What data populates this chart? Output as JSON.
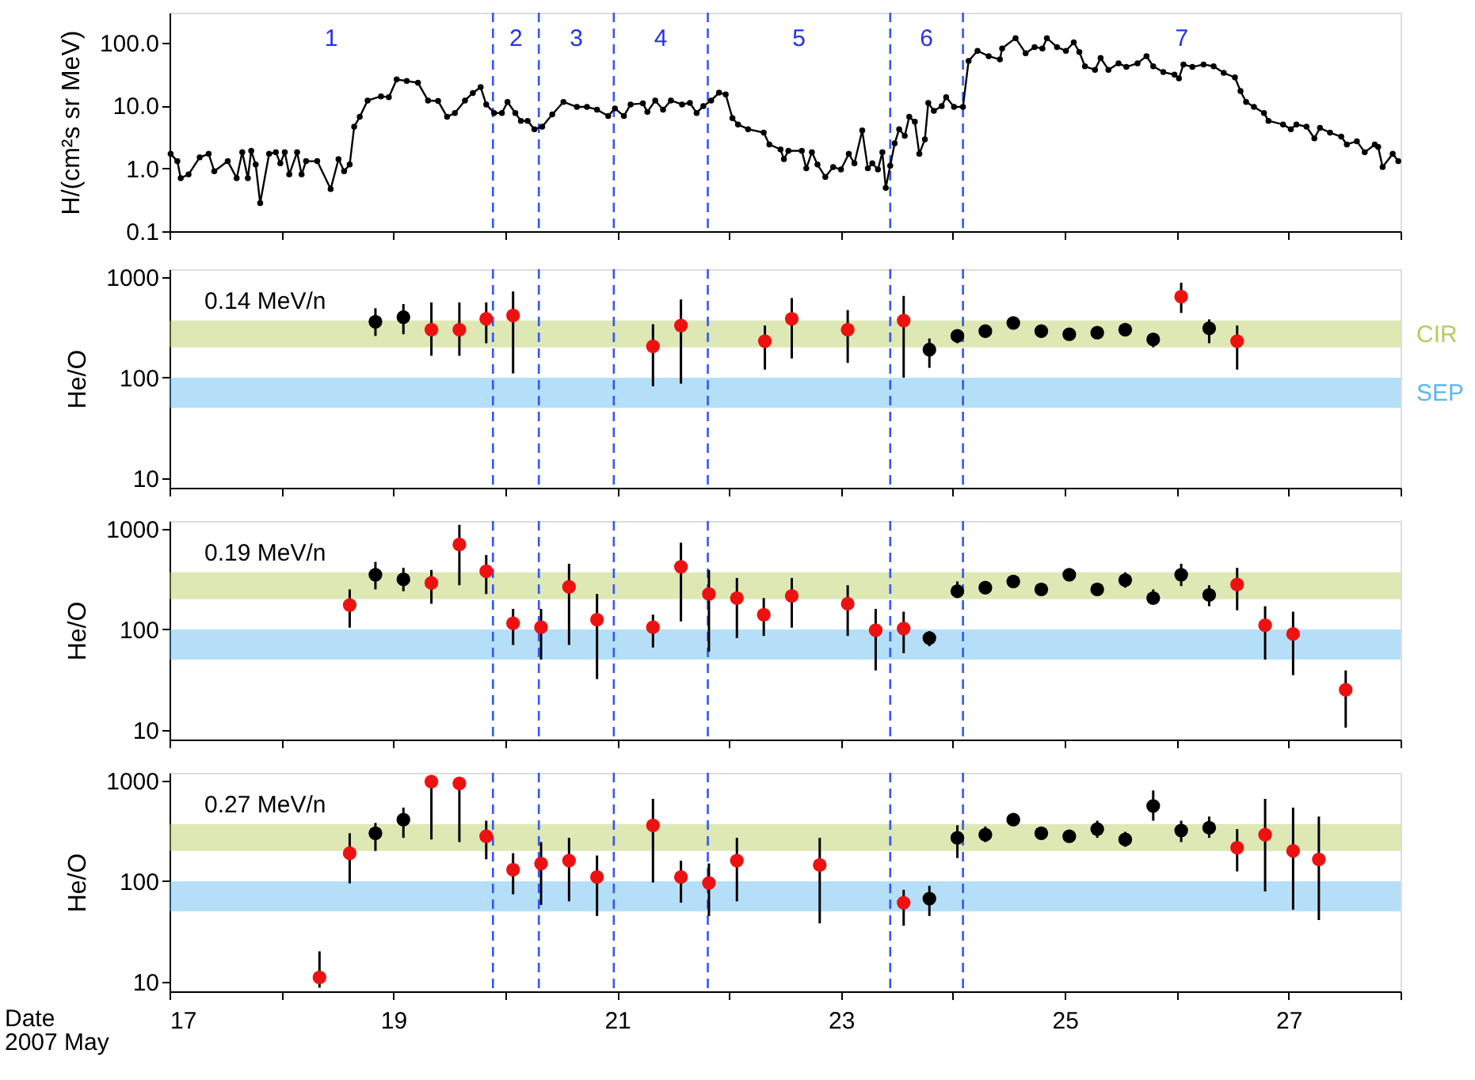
{
  "chart_data": [
    {
      "type": "line",
      "ylabel": "H/(cm²s sr MeV)",
      "log": true,
      "marker": "circle",
      "line_style": "solid",
      "tick_labels": "y",
      "xlim": [
        17,
        28
      ],
      "xticks": [
        17,
        {
          "value": 18,
          "label": null
        },
        19,
        {
          "value": 20,
          "label": null
        },
        21,
        {
          "value": 22,
          "label": null
        },
        23,
        {
          "value": 24,
          "label": null
        },
        25,
        {
          "value": 26,
          "label": null
        },
        27,
        {
          "value": 28,
          "label": null
        }
      ],
      "ylim": [
        0.1,
        300
      ],
      "yticks": [
        0.1,
        {
          "value": 1,
          "label": "1.0"
        },
        {
          "value": 10,
          "label": "10.0"
        },
        {
          "value": 100,
          "label": "100.0"
        }
      ],
      "series": [
        {
          "color": "#000000",
          "x": [
            17.01,
            17.07,
            17.1,
            17.17,
            17.27,
            17.35,
            17.4,
            17.52,
            17.6,
            17.65,
            17.7,
            17.73,
            17.77,
            17.81,
            17.89,
            17.95,
            17.99,
            18.03,
            18.07,
            18.14,
            18.18,
            18.22,
            18.32,
            18.44,
            18.51,
            18.56,
            18.61,
            18.65,
            18.7,
            18.77,
            18.89,
            18.96,
            19.03,
            19.12,
            19.22,
            19.31,
            19.4,
            19.48,
            19.55,
            19.64,
            19.71,
            19.78,
            19.83,
            19.9,
            19.97,
            20.02,
            20.09,
            20.14,
            20.2,
            20.26,
            20.33,
            20.42,
            20.52,
            20.64,
            20.73,
            20.82,
            20.92,
            20.98,
            21.06,
            21.12,
            21.23,
            21.27,
            21.34,
            21.41,
            21.48,
            21.58,
            21.65,
            21.71,
            21.77,
            21.84,
            21.91,
            21.97,
            22.03,
            22.08,
            22.17,
            22.31,
            22.36,
            22.46,
            22.49,
            22.53,
            22.65,
            22.69,
            22.74,
            22.79,
            22.86,
            22.93,
            23.0,
            23.07,
            23.12,
            23.19,
            23.24,
            23.28,
            23.33,
            23.37,
            23.4,
            23.44,
            23.48,
            23.52,
            23.57,
            23.61,
            23.66,
            23.7,
            23.75,
            23.78,
            23.83,
            23.9,
            23.94,
            24.01,
            24.09,
            24.14,
            24.22,
            24.32,
            24.42,
            24.44,
            24.56,
            24.65,
            24.73,
            24.8,
            24.84,
            24.93,
            25.01,
            25.08,
            25.13,
            25.18,
            25.27,
            25.32,
            25.39,
            25.48,
            25.55,
            25.65,
            25.73,
            25.79,
            25.88,
            25.98,
            26.02,
            26.06,
            26.14,
            26.24,
            26.33,
            26.42,
            26.52,
            26.57,
            26.62,
            26.69,
            26.78,
            26.82,
            26.95,
            27.02,
            27.07,
            27.16,
            27.23,
            27.28,
            27.37,
            27.47,
            27.52,
            27.61,
            27.68,
            27.77,
            27.8,
            27.84,
            27.93,
            27.98
          ],
          "values": [
            1.7,
            1.3,
            0.7,
            0.8,
            1.5,
            1.7,
            0.9,
            1.3,
            0.7,
            1.8,
            0.7,
            1.9,
            1.15,
            0.28,
            1.7,
            1.8,
            1.2,
            1.8,
            0.8,
            1.8,
            0.8,
            1.3,
            1.3,
            0.47,
            1.4,
            0.9,
            1.15,
            4.6,
            6.6,
            12,
            14,
            13.6,
            26,
            24.5,
            23,
            12,
            11.8,
            6.6,
            7.6,
            12,
            15.8,
            19.6,
            10.4,
            7.6,
            7.6,
            11.4,
            7.6,
            5.7,
            5.7,
            4.2,
            4.6,
            7.2,
            11.4,
            9.5,
            9.5,
            8.6,
            6.8,
            9,
            6.8,
            10.4,
            10.8,
            7.9,
            12,
            8.6,
            12,
            10.4,
            11,
            7.6,
            9.8,
            12,
            16,
            15,
            6.3,
            5,
            4.2,
            3.7,
            2.4,
            2.0,
            1.4,
            1.9,
            1.9,
            1.0,
            1.8,
            1.15,
            0.73,
            1.05,
            0.96,
            1.7,
            1.2,
            4.0,
            1.0,
            1.2,
            0.96,
            1.8,
            0.49,
            1.1,
            2.5,
            4.2,
            3.3,
            6.6,
            5.5,
            1.7,
            2.9,
            11,
            8.2,
            9.8,
            13.6,
            9.5,
            9.5,
            51,
            74,
            61,
            54,
            81,
            118,
            68,
            85,
            81,
            118,
            85,
            74,
            101,
            71,
            42,
            37,
            57,
            37,
            47,
            41,
            47,
            61,
            42,
            34,
            31,
            27,
            45,
            41,
            45,
            42,
            33,
            28,
            17,
            11.4,
            9.5,
            7.6,
            5.7,
            5.0,
            4.2,
            5.0,
            4.6,
            3.0,
            4.4,
            3.7,
            3.2,
            2.4,
            2.7,
            1.8,
            2.4,
            2.2,
            1.05,
            1.7,
            1.3
          ]
        }
      ],
      "ref_lines": [
        {
          "axis": "x",
          "value": 19.89,
          "color": "#3355ff",
          "line_style": "dashed"
        },
        {
          "axis": "x",
          "value": 20.3,
          "color": "#3355ff",
          "line_style": "dashed"
        },
        {
          "axis": "x",
          "value": 20.97,
          "color": "#3355ff",
          "line_style": "dashed"
        },
        {
          "axis": "x",
          "value": 21.81,
          "color": "#3355ff",
          "line_style": "dashed"
        },
        {
          "axis": "x",
          "value": 23.44,
          "color": "#3355ff",
          "line_style": "dashed"
        },
        {
          "axis": "x",
          "value": 24.09,
          "color": "#3355ff",
          "line_style": "dashed"
        }
      ],
      "annotations": [
        "1",
        "2",
        "3",
        "4",
        "5",
        "6",
        "7"
      ]
    },
    {
      "type": "scatter",
      "ylabel": "He/O",
      "log": true,
      "marker": "circle",
      "tick_labels": "y",
      "xlim": [
        17,
        28
      ],
      "xticks": [
        17,
        {
          "value": 18,
          "label": null
        },
        19,
        {
          "value": 20,
          "label": null
        },
        21,
        {
          "value": 22,
          "label": null
        },
        23,
        {
          "value": 24,
          "label": null
        },
        25,
        {
          "value": 26,
          "label": null
        },
        27,
        {
          "value": 28,
          "label": null
        }
      ],
      "ylim": [
        8,
        1200
      ],
      "yticks": [
        10,
        100,
        1000
      ],
      "annotations": [
        "0.14 MeV/n"
      ],
      "bands": [
        {
          "axis": "y",
          "from": 200,
          "to": 370,
          "label": "CIR",
          "color": "#b4cd5a"
        },
        {
          "axis": "y",
          "from": 50,
          "to": 100,
          "label": "SEP",
          "color": "#5ab8f0"
        }
      ],
      "ref_lines": [
        {
          "axis": "x",
          "value": 19.89,
          "color": "#3355ff",
          "line_style": "dashed"
        },
        {
          "axis": "x",
          "value": 20.3,
          "color": "#3355ff",
          "line_style": "dashed"
        },
        {
          "axis": "x",
          "value": 20.97,
          "color": "#3355ff",
          "line_style": "dashed"
        },
        {
          "axis": "x",
          "value": 21.81,
          "color": "#3355ff",
          "line_style": "dashed"
        },
        {
          "axis": "x",
          "value": 23.44,
          "color": "#3355ff",
          "line_style": "dashed"
        },
        {
          "axis": "x",
          "value": 24.09,
          "color": "#3355ff",
          "line_style": "dashed"
        }
      ],
      "series": [
        {
          "color": "#ee1111",
          "x": [
            19.34,
            19.59,
            19.83,
            20.07,
            21.32,
            21.57,
            22.32,
            22.56,
            23.06,
            23.56,
            26.04,
            26.54
          ],
          "values": [
            300,
            300,
            385,
            415,
            205,
            330,
            230,
            385,
            300,
            370,
            640,
            230
          ],
          "errors": [
            [
              165,
              560
            ],
            [
              165,
              560
            ],
            [
              220,
              560
            ],
            [
              110,
              720
            ],
            [
              82,
              340
            ],
            [
              87,
              600
            ],
            [
              120,
              330
            ],
            [
              155,
              620
            ],
            [
              140,
              470
            ],
            [
              100,
              650
            ],
            [
              440,
              880
            ],
            [
              120,
              330
            ]
          ]
        },
        {
          "color": "#000000",
          "x": [
            18.84,
            19.09,
            23.79,
            24.04,
            24.29,
            24.54,
            24.79,
            25.04,
            25.29,
            25.54,
            25.79,
            26.29
          ],
          "values": [
            360,
            400,
            190,
            260,
            290,
            350,
            290,
            270,
            280,
            300,
            240,
            310
          ],
          "errors": [
            [
              260,
              490
            ],
            [
              270,
              540
            ],
            [
              125,
              245
            ],
            [
              220,
              300
            ],
            null,
            null,
            null,
            null,
            null,
            [
              260,
              340
            ],
            [
              200,
              270
            ],
            [
              220,
              380
            ]
          ]
        }
      ]
    },
    {
      "type": "scatter",
      "ylabel": "He/O",
      "log": true,
      "marker": "circle",
      "tick_labels": "y",
      "xlim": [
        17,
        28
      ],
      "xticks": [
        17,
        {
          "value": 18,
          "label": null
        },
        19,
        {
          "value": 20,
          "label": null
        },
        21,
        {
          "value": 22,
          "label": null
        },
        23,
        {
          "value": 24,
          "label": null
        },
        25,
        {
          "value": 26,
          "label": null
        },
        27,
        {
          "value": 28,
          "label": null
        }
      ],
      "ylim": [
        8,
        1200
      ],
      "yticks": [
        10,
        100,
        1000
      ],
      "annotations": [
        "0.19 MeV/n"
      ],
      "bands": [
        {
          "axis": "y",
          "from": 200,
          "to": 370,
          "color": "#b4cd5a"
        },
        {
          "axis": "y",
          "from": 50,
          "to": 100,
          "color": "#5ab8f0"
        }
      ],
      "ref_lines": [
        {
          "axis": "x",
          "value": 19.89,
          "color": "#3355ff",
          "line_style": "dashed"
        },
        {
          "axis": "x",
          "value": 20.3,
          "color": "#3355ff",
          "line_style": "dashed"
        },
        {
          "axis": "x",
          "value": 20.97,
          "color": "#3355ff",
          "line_style": "dashed"
        },
        {
          "axis": "x",
          "value": 21.81,
          "color": "#3355ff",
          "line_style": "dashed"
        },
        {
          "axis": "x",
          "value": 23.44,
          "color": "#3355ff",
          "line_style": "dashed"
        },
        {
          "axis": "x",
          "value": 24.09,
          "color": "#3355ff",
          "line_style": "dashed"
        }
      ],
      "series": [
        {
          "color": "#ee1111",
          "x": [
            18.61,
            19.34,
            19.59,
            19.83,
            20.07,
            20.32,
            20.57,
            20.82,
            21.32,
            21.57,
            21.82,
            22.07,
            22.31,
            22.56,
            23.06,
            23.31,
            23.56,
            26.54,
            26.79,
            27.04,
            27.51
          ],
          "values": [
            175,
            290,
            700,
            380,
            115,
            105,
            265,
            125,
            105,
            420,
            225,
            205,
            140,
            215,
            180,
            98,
            102,
            280,
            110,
            90,
            25
          ],
          "errors": [
            [
              104,
              250
            ],
            [
              180,
              390
            ],
            [
              275,
              1100
            ],
            [
              225,
              550
            ],
            [
              70,
              160
            ],
            [
              50,
              160
            ],
            [
              70,
              450
            ],
            [
              32,
              225
            ],
            [
              66,
              140
            ],
            [
              120,
              730
            ],
            [
              60,
              390
            ],
            [
              82,
              325
            ],
            [
              86,
              205
            ],
            [
              104,
              325
            ],
            [
              86,
              275
            ],
            [
              39,
              160
            ],
            [
              58,
              150
            ],
            [
              155,
              410
            ],
            [
              50,
              170
            ],
            [
              35,
              150
            ],
            [
              10.5,
              39
            ]
          ]
        },
        {
          "color": "#000000",
          "x": [
            18.84,
            19.09,
            23.79,
            24.04,
            24.29,
            24.54,
            24.79,
            25.04,
            25.29,
            25.54,
            25.79,
            26.04,
            26.29
          ],
          "values": [
            350,
            315,
            82,
            240,
            260,
            300,
            250,
            350,
            250,
            310,
            205,
            350,
            220
          ],
          "errors": [
            [
              250,
              470
            ],
            [
              240,
              410
            ],
            [
              68,
              96
            ],
            [
              205,
              300
            ],
            null,
            null,
            null,
            null,
            null,
            [
              260,
              370
            ],
            [
              180,
              250
            ],
            [
              270,
              450
            ],
            [
              170,
              275
            ]
          ]
        }
      ]
    },
    {
      "type": "scatter",
      "ylabel": "He/O",
      "xlabel": "Date\n2007 May",
      "log": true,
      "marker": "circle",
      "xlim": [
        17,
        28
      ],
      "xticks": [
        17,
        {
          "value": 18,
          "label": null
        },
        19,
        {
          "value": 20,
          "label": null
        },
        21,
        {
          "value": 22,
          "label": null
        },
        23,
        {
          "value": 24,
          "label": null
        },
        25,
        {
          "value": 26,
          "label": null
        },
        27,
        {
          "value": 28,
          "label": null
        }
      ],
      "ylim": [
        8,
        1200
      ],
      "yticks": [
        10,
        100,
        1000
      ],
      "annotations": [
        "0.27 MeV/n"
      ],
      "bands": [
        {
          "axis": "y",
          "from": 200,
          "to": 370,
          "color": "#b4cd5a"
        },
        {
          "axis": "y",
          "from": 50,
          "to": 100,
          "color": "#5ab8f0"
        }
      ],
      "ref_lines": [
        {
          "axis": "x",
          "value": 19.89,
          "color": "#3355ff",
          "line_style": "dashed"
        },
        {
          "axis": "x",
          "value": 20.3,
          "color": "#3355ff",
          "line_style": "dashed"
        },
        {
          "axis": "x",
          "value": 20.97,
          "color": "#3355ff",
          "line_style": "dashed"
        },
        {
          "axis": "x",
          "value": 21.81,
          "color": "#3355ff",
          "line_style": "dashed"
        },
        {
          "axis": "x",
          "value": 23.44,
          "color": "#3355ff",
          "line_style": "dashed"
        },
        {
          "axis": "x",
          "value": 24.09,
          "color": "#3355ff",
          "line_style": "dashed"
        }
      ],
      "series": [
        {
          "color": "#ee1111",
          "x": [
            18.34,
            18.61,
            19.34,
            19.59,
            19.83,
            20.07,
            20.32,
            20.57,
            20.82,
            21.32,
            21.57,
            21.82,
            22.07,
            22.81,
            23.56,
            26.54,
            26.79,
            27.04,
            27.27
          ],
          "values": [
            11,
            190,
            980,
            940,
            280,
            130,
            150,
            160,
            110,
            360,
            110,
            96,
            160,
            145,
            61,
            215,
            290,
            200,
            165
          ],
          "errors": [
            [
              8.7,
              20
            ],
            [
              95,
              300
            ],
            [
              260,
              1070
            ],
            [
              245,
              1020
            ],
            [
              165,
              400
            ],
            [
              74,
              190
            ],
            [
              58,
              245
            ],
            [
              63,
              270
            ],
            [
              45,
              180
            ],
            [
              97,
              660
            ],
            [
              61,
              160
            ],
            [
              45,
              150
            ],
            [
              63,
              270
            ],
            [
              38,
              270
            ],
            [
              36,
              82
            ],
            [
              125,
              330
            ],
            [
              79,
              660
            ],
            [
              52,
              540
            ],
            [
              41,
              440
            ]
          ]
        },
        {
          "color": "#000000",
          "x": [
            18.84,
            19.09,
            23.79,
            24.04,
            24.29,
            24.54,
            24.79,
            25.04,
            25.29,
            25.54,
            25.79,
            26.04,
            26.29
          ],
          "values": [
            300,
            410,
            67,
            270,
            290,
            410,
            300,
            280,
            330,
            260,
            560,
            320,
            340
          ],
          "errors": [
            [
              200,
              380
            ],
            [
              270,
              540
            ],
            [
              45,
              90
            ],
            [
              170,
              360
            ],
            [
              245,
              350
            ],
            null,
            null,
            null,
            [
              270,
              400
            ],
            [
              220,
              310
            ],
            [
              400,
              800
            ],
            [
              245,
              400
            ],
            [
              270,
              440
            ]
          ]
        }
      ]
    }
  ]
}
